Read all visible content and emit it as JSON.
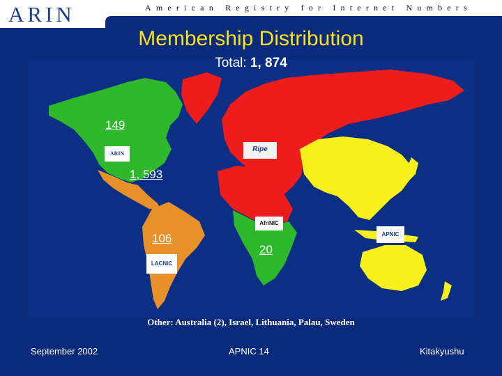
{
  "header": {
    "logo_text": "ARIN",
    "tagline": "American Registry for Internet Numbers"
  },
  "title": "Membership Distribution",
  "total": {
    "label": "Total:",
    "value": "1, 874"
  },
  "regions": {
    "arin_canada": {
      "count": "149",
      "color": "#2fb82b"
    },
    "arin_us": {
      "count": "1, 593",
      "color": "#2fb82b"
    },
    "lacnic": {
      "count": "106",
      "color": "#e8902a"
    },
    "afrinic": {
      "count": "20",
      "color": "#2fb82b"
    },
    "ripe": {
      "color": "#ef1c1c"
    },
    "apnic": {
      "color": "#f7f01a"
    }
  },
  "rir_logos": {
    "arin": "ARIN",
    "ripe": "Ripe",
    "afrinic": "AfriNIC",
    "apnic": "APNIC",
    "lacnic": "LACNIC"
  },
  "other_note": "Other: Australia (2), Israel, Lithuania, Palau, Sweden",
  "footer": {
    "date": "September 2002",
    "event": "APNIC 14",
    "location": "Kitakyushu"
  }
}
